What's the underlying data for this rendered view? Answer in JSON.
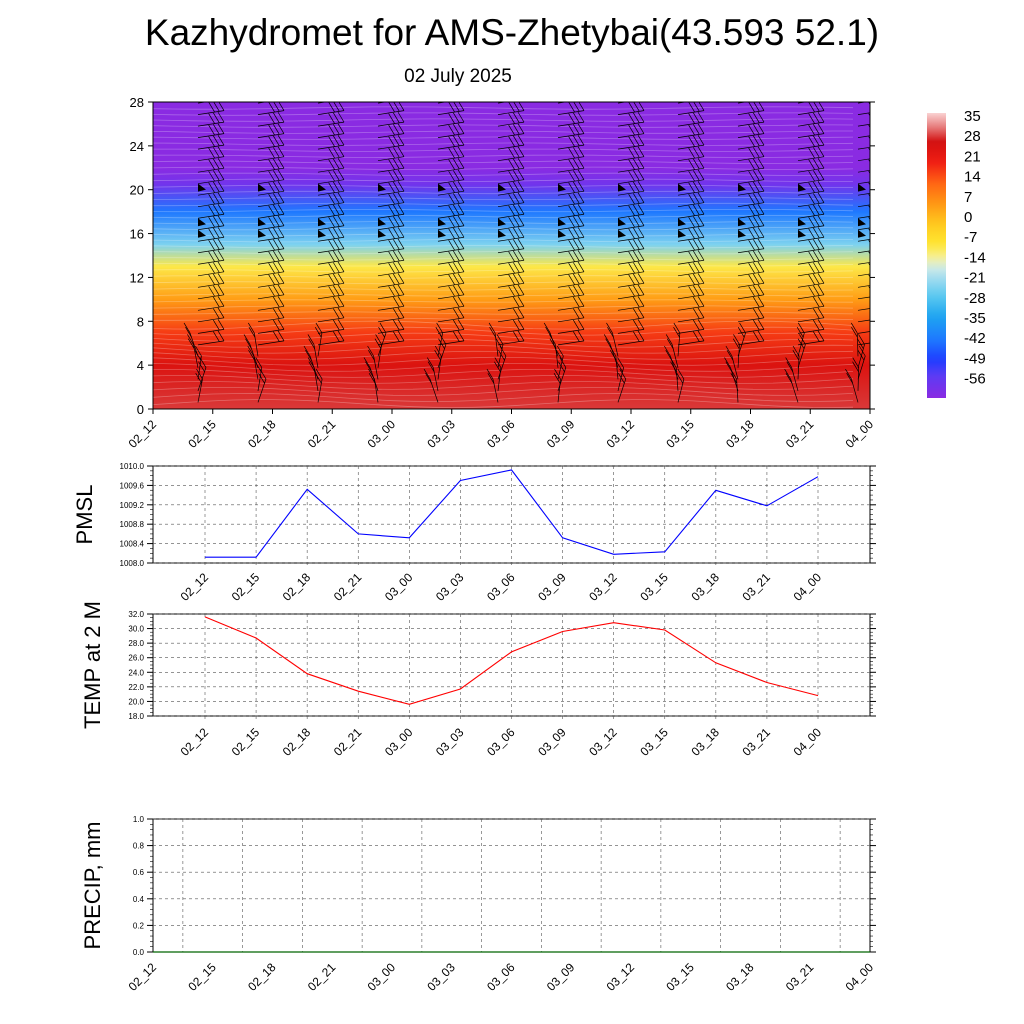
{
  "title": "Kazhydromet for AMS-Zhetybai(43.593 52.1)",
  "subtitle": "02 July 2025",
  "chart_data": [
    {
      "type": "heatmap",
      "description_values": "time-height cross section of temperature with wind barbs",
      "x_ticks": [
        "02_12",
        "02_15",
        "02_18",
        "02_21",
        "03_00",
        "03_03",
        "03_06",
        "03_09",
        "03_12",
        "03_15",
        "03_18",
        "03_21",
        "04_00"
      ],
      "y_ticks": [
        0,
        4,
        8,
        12,
        16,
        20,
        24,
        28
      ],
      "ylim": [
        0,
        28
      ],
      "colorbar": {
        "labels": [
          "35",
          "28",
          "21",
          "14",
          "7",
          "0",
          "-7",
          "-14",
          "-21",
          "-28",
          "-35",
          "-42",
          "-49",
          "-56"
        ],
        "range": [
          -60,
          38
        ]
      },
      "temperature_profile": [
        {
          "height": 0,
          "value": 30
        },
        {
          "height": 4,
          "value": 26
        },
        {
          "height": 7,
          "value": 18
        },
        {
          "height": 10,
          "value": 6
        },
        {
          "height": 13,
          "value": -8
        },
        {
          "height": 15,
          "value": -22
        },
        {
          "height": 18,
          "value": -40
        },
        {
          "height": 20.5,
          "value": -56
        },
        {
          "height": 22,
          "value": -60
        },
        {
          "height": 28,
          "value": -60
        }
      ]
    },
    {
      "type": "line",
      "ylabel": "PMSL",
      "categories": [
        "02_12",
        "02_15",
        "02_18",
        "02_21",
        "03_00",
        "03_03",
        "03_06",
        "03_09",
        "03_12",
        "03_15",
        "03_18",
        "03_21",
        "04_00"
      ],
      "y_ticks": [
        "1008.0",
        "1008.4",
        "1008.8",
        "1009.2",
        "1009.6",
        "1010.0"
      ],
      "ylim": [
        1008.0,
        1010.0
      ],
      "color": "#0000ff",
      "values": [
        1008.12,
        1008.12,
        1009.52,
        1008.6,
        1008.52,
        1009.7,
        1009.92,
        1008.52,
        1008.18,
        1008.23,
        1009.5,
        1009.18,
        1009.78
      ]
    },
    {
      "type": "line",
      "ylabel": "TEMP at 2 M",
      "categories": [
        "02_12",
        "02_15",
        "02_18",
        "02_21",
        "03_00",
        "03_03",
        "03_06",
        "03_09",
        "03_12",
        "03_15",
        "03_18",
        "03_21",
        "04_00"
      ],
      "y_ticks": [
        "18.0",
        "20.0",
        "22.0",
        "24.0",
        "26.0",
        "28.0",
        "30.0",
        "32.0"
      ],
      "ylim": [
        18.0,
        32.0
      ],
      "color": "#ff0000",
      "values": [
        31.6,
        28.7,
        23.8,
        21.4,
        19.6,
        21.7,
        26.8,
        29.6,
        30.8,
        29.8,
        25.3,
        22.6,
        20.8
      ]
    },
    {
      "type": "line",
      "ylabel": "PRECIP, mm",
      "categories": [
        "02_12",
        "02_15",
        "02_18",
        "02_21",
        "03_00",
        "03_03",
        "03_06",
        "03_09",
        "03_12",
        "03_15",
        "03_18",
        "03_21",
        "04_00"
      ],
      "y_ticks": [
        "0.0",
        "0.2",
        "0.4",
        "0.6",
        "0.8",
        "1.0"
      ],
      "ylim": [
        0.0,
        1.0
      ],
      "color": "#006400",
      "values": [
        0,
        0,
        0,
        0,
        0,
        0,
        0,
        0,
        0,
        0,
        0,
        0,
        0
      ]
    }
  ]
}
